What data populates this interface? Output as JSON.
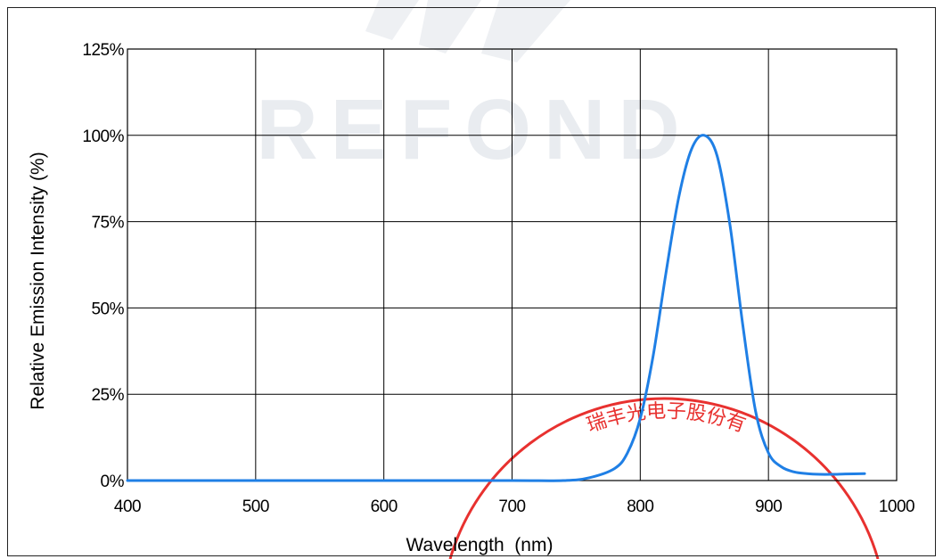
{
  "watermark": {
    "logo_text": "REFOND"
  },
  "stamp": {
    "text": "瑞丰光电子股份有"
  },
  "colors": {
    "series": "#1f7fe5",
    "grid": "#000000",
    "stamp": "#e8312f",
    "watermark": "#e9ecf0"
  },
  "chart_data": {
    "type": "line",
    "title": "",
    "xlabel": "Wavelength  (nm)",
    "ylabel": "Relative Emission Intensity (%)",
    "xlim": [
      400,
      1000
    ],
    "ylim": [
      0,
      125
    ],
    "x_ticks": [
      400,
      500,
      600,
      700,
      800,
      900,
      1000
    ],
    "y_ticks": [
      0,
      25,
      50,
      75,
      100,
      125
    ],
    "y_tick_labels": [
      "0%",
      "25%",
      "50%",
      "75%",
      "100%",
      "125%"
    ],
    "grid": true,
    "legend": "none",
    "series": [
      {
        "x": [
          400,
          500,
          600,
          700,
          740,
          760,
          780,
          790,
          800,
          810,
          820,
          830,
          840,
          850,
          860,
          870,
          880,
          890,
          900,
          910,
          920,
          930,
          940,
          950,
          960,
          975
        ],
        "y": [
          0,
          0,
          0,
          0,
          0,
          0.8,
          3.5,
          8,
          18,
          36,
          60,
          82,
          96,
          100,
          94,
          74,
          45,
          20,
          8,
          4,
          2.5,
          2,
          1.8,
          1.8,
          1.9,
          2
        ]
      }
    ]
  }
}
